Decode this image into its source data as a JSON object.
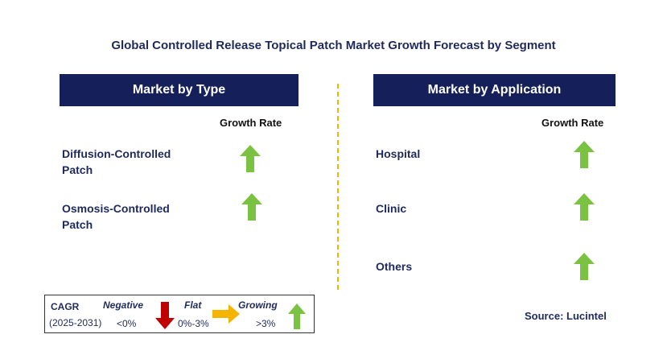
{
  "title": "Global Controlled Release Topical Patch Market Growth Forecast by Segment",
  "left_panel": {
    "header": "Market by Type",
    "growth_label": "Growth Rate",
    "rows": [
      {
        "label_line1": "Diffusion-Controlled",
        "label_line2": "Patch",
        "trend": "growing"
      },
      {
        "label_line1": "Osmosis-Controlled",
        "label_line2": "Patch",
        "trend": "growing"
      }
    ]
  },
  "right_panel": {
    "header": "Market by Application",
    "growth_label": "Growth Rate",
    "rows": [
      {
        "label": "Hospital",
        "trend": "growing"
      },
      {
        "label": "Clinic",
        "trend": "growing"
      },
      {
        "label": "Others",
        "trend": "growing"
      }
    ]
  },
  "legend": {
    "cagr_label": "CAGR",
    "period": "(2025-2031)",
    "negative_label": "Negative",
    "negative_value": "<0%",
    "flat_label": "Flat",
    "flat_value": "0%-3%",
    "growing_label": "Growing",
    "growing_value": ">3%"
  },
  "source": "Source: Lucintel",
  "colors": {
    "header_bg": "#15205a",
    "text": "#1f2a5c",
    "up_arrow": "#7cc242",
    "down_arrow": "#c00000",
    "flat_arrow": "#f5b400",
    "divider": "#f2b400"
  },
  "icons": [
    "up-arrow-icon",
    "down-arrow-icon",
    "right-arrow-icon"
  ]
}
